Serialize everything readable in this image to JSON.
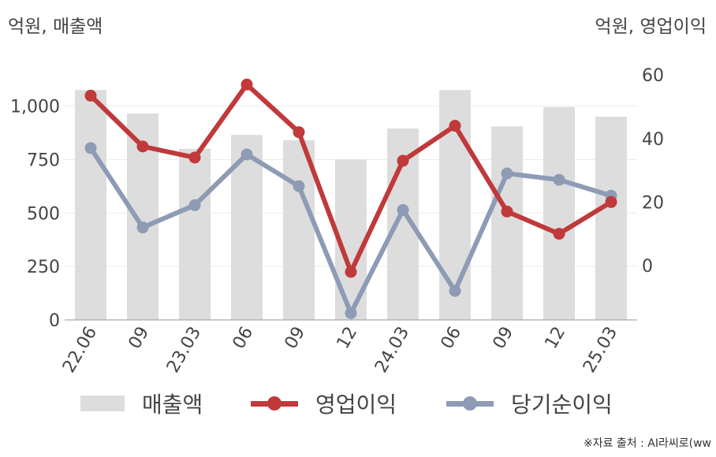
{
  "units": {
    "left": "억원, 매출액",
    "right": "억원, 영업이익"
  },
  "source": "※자료 출처 : AI라씨로(ww",
  "legend": [
    {
      "label": "매출액",
      "kind": "bar"
    },
    {
      "label": "영업이익",
      "kind": "line"
    },
    {
      "label": "당기순이익",
      "kind": "line"
    }
  ],
  "chart_data": {
    "type": "bar+line",
    "categories": [
      "22.06",
      "09",
      "23.03",
      "06",
      "09",
      "12",
      "24.03",
      "06",
      "09",
      "12",
      "25.03"
    ],
    "series": [
      {
        "name": "매출액",
        "type": "bar",
        "axis": "left",
        "color": "#dddddd",
        "values": [
          1075,
          965,
          800,
          865,
          840,
          750,
          895,
          1075,
          905,
          995,
          950
        ]
      },
      {
        "name": "영업이익",
        "type": "line",
        "axis": "right",
        "color": "#c0393b",
        "values": [
          53.5,
          37.5,
          34,
          57,
          42,
          -2,
          33,
          44,
          17,
          10,
          20
        ]
      },
      {
        "name": "당기순이익",
        "type": "line",
        "axis": "right",
        "color": "#8e9bb5",
        "values": [
          37,
          12,
          19,
          35,
          25,
          -15,
          17.5,
          -8,
          29,
          27,
          22
        ]
      }
    ],
    "left_axis": {
      "ticks": [
        "0",
        "250",
        "500",
        "750",
        "1,000"
      ],
      "ylim": [
        0,
        1250
      ]
    },
    "right_axis": {
      "ticks": [
        "0",
        "20",
        "40",
        "60"
      ],
      "ylim": [
        -17,
        60
      ]
    },
    "grid": true,
    "legend_position": "bottom"
  }
}
